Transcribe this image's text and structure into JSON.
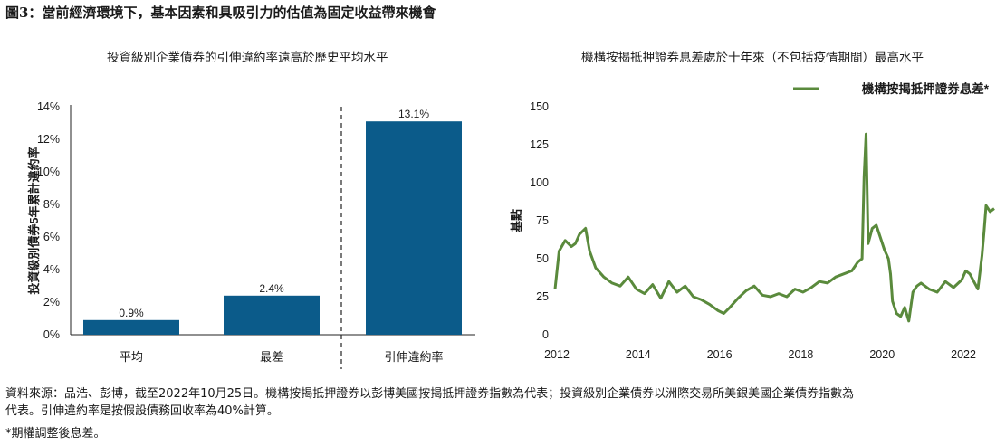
{
  "figure": {
    "title": "圖3：當前經濟環境下，基本因素和具吸引力的估值為固定收益帶來機會"
  },
  "chart_data": [
    {
      "type": "bar",
      "title": "投資級別企業債券的引伸違約率遠高於歷史平均水平",
      "ylabel": "投資級別債券5年累計違約率",
      "categories": [
        "平均",
        "最差",
        "引伸違約率"
      ],
      "values": [
        0.9,
        2.4,
        13.1
      ],
      "data_labels": [
        "0.9%",
        "2.4%",
        "13.1%"
      ],
      "ylim": [
        0,
        14
      ],
      "yticks": [
        "0%",
        "2%",
        "4%",
        "6%",
        "8%",
        "10%",
        "12%",
        "14%"
      ],
      "bar_color": "#0b5b8a",
      "divider": "dashed line between 最差 and 引伸違約率"
    },
    {
      "type": "line",
      "title": "機構按揭抵押證券息差處於十年來（不包括疫情期間）最高水平",
      "ylabel": "基點",
      "ylim": [
        0,
        150
      ],
      "yticks": [
        "0",
        "25",
        "50",
        "75",
        "100",
        "125",
        "150"
      ],
      "xlim": [
        2012,
        2022.8
      ],
      "xticks": [
        "2012",
        "2014",
        "2016",
        "2018",
        "2020",
        "2022"
      ],
      "legend_position": "top-right",
      "series": [
        {
          "name": "機構按揭抵押證券息差*",
          "color": "#5a8a3c",
          "x": [
            2012.0,
            2012.1,
            2012.25,
            2012.4,
            2012.5,
            2012.6,
            2012.75,
            2012.85,
            2013.0,
            2013.2,
            2013.4,
            2013.6,
            2013.8,
            2014.0,
            2014.2,
            2014.4,
            2014.6,
            2014.8,
            2015.0,
            2015.2,
            2015.4,
            2015.6,
            2015.8,
            2016.0,
            2016.15,
            2016.3,
            2016.5,
            2016.7,
            2016.9,
            2017.1,
            2017.3,
            2017.5,
            2017.7,
            2017.9,
            2018.1,
            2018.3,
            2018.5,
            2018.7,
            2018.9,
            2019.1,
            2019.3,
            2019.45,
            2019.55,
            2019.6,
            2019.65,
            2019.7,
            2019.8,
            2019.9,
            2020.0,
            2020.1,
            2020.2,
            2020.25,
            2020.3,
            2020.4,
            2020.5,
            2020.6,
            2020.7,
            2020.8,
            2020.9,
            2021.0,
            2021.2,
            2021.4,
            2021.6,
            2021.8,
            2022.0,
            2022.1,
            2022.2,
            2022.3,
            2022.4,
            2022.5,
            2022.55,
            2022.6,
            2022.7,
            2022.8
          ],
          "y": [
            30,
            55,
            62,
            58,
            60,
            66,
            70,
            55,
            44,
            38,
            34,
            32,
            38,
            30,
            27,
            33,
            24,
            35,
            28,
            32,
            25,
            23,
            20,
            16,
            14,
            18,
            24,
            29,
            32,
            26,
            25,
            27,
            25,
            30,
            28,
            31,
            35,
            34,
            38,
            40,
            42,
            48,
            50,
            104,
            132,
            60,
            70,
            72,
            64,
            56,
            50,
            40,
            22,
            14,
            12,
            18,
            9,
            28,
            32,
            34,
            30,
            28,
            35,
            31,
            36,
            42,
            40,
            35,
            30,
            52,
            68,
            85,
            81,
            83
          ]
        }
      ]
    }
  ],
  "footnotes": {
    "source_line1": "資料來源：品浩、彭博，截至2022年10月25日。機構按揭抵押證券以彭博美國按揭抵押證券指數為代表；投資級別企業債券以洲際交易所美銀美國企業債券指數為",
    "source_line2": "代表。引伸違約率是按假設債務回收率為40%計算。",
    "note": "*期權調整後息差。"
  }
}
